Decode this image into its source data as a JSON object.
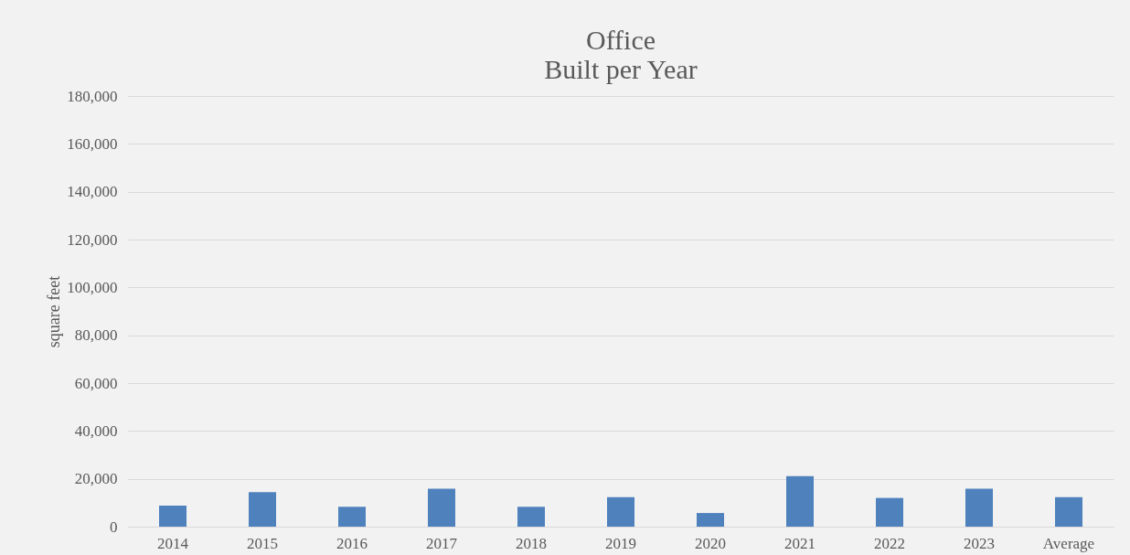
{
  "chart_data": {
    "type": "bar",
    "title": [
      "Office",
      "Built per Year"
    ],
    "ylabel": "square feet",
    "categories": [
      "2014",
      "2015",
      "2016",
      "2017",
      "2018",
      "2019",
      "2020",
      "2021",
      "2022",
      "2023",
      "Average"
    ],
    "values": [
      8800,
      14400,
      8300,
      15900,
      8300,
      12300,
      5700,
      21100,
      12000,
      15900,
      12300
    ],
    "color": "#4f81bd",
    "ylim": [
      0,
      180000
    ],
    "yticks": [
      0,
      {
        "value": 20000,
        "label": "20,000"
      },
      {
        "value": 40000,
        "label": "40,000"
      },
      {
        "value": 60000,
        "label": "60,000"
      },
      {
        "value": 80000,
        "label": "80,000"
      },
      {
        "value": 100000,
        "label": "100,000"
      },
      {
        "value": 120000,
        "label": "120,000"
      },
      {
        "value": 140000,
        "label": "140,000"
      },
      {
        "value": 160000,
        "label": "160,000"
      },
      {
        "value": 180000,
        "label": "180,000"
      }
    ],
    "grid": "y"
  }
}
